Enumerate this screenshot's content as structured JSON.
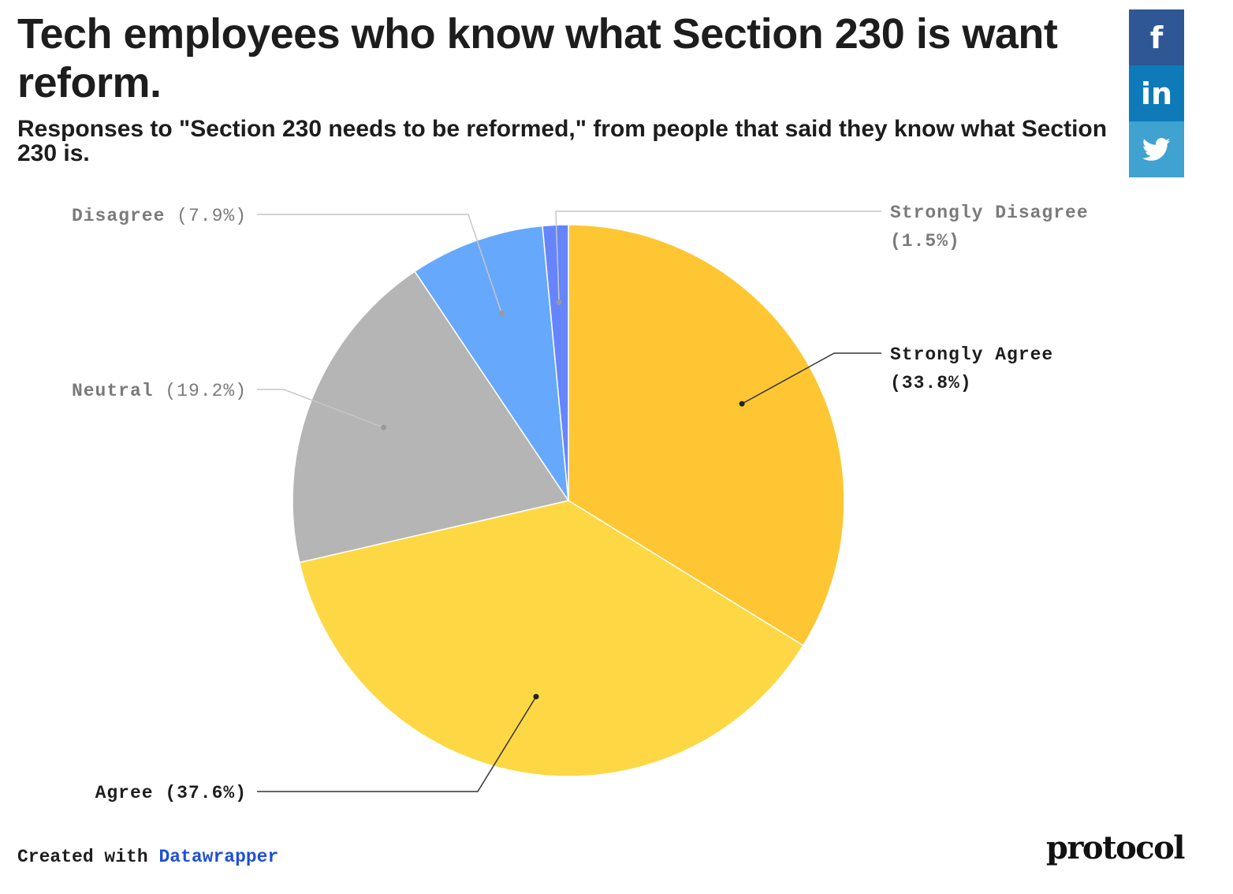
{
  "header": {
    "title": "Tech employees who know what Section 230 is want reform.",
    "subtitle": "Responses to \"Section 230 needs to be reformed,\" from people that said they know what Section 230 is."
  },
  "social": {
    "facebook": {
      "glyph": "f",
      "color": "#2f5796"
    },
    "linkedin": {
      "glyph": "in",
      "color": "#0f7ab8"
    },
    "twitter": {
      "glyph": "twitter-bird",
      "color": "#3fa2d0"
    }
  },
  "chart_data": {
    "type": "pie",
    "categories": [
      "Strongly Agree",
      "Agree",
      "Neutral",
      "Disagree",
      "Strongly Disagree"
    ],
    "values": [
      33.8,
      37.6,
      19.2,
      7.9,
      1.5
    ],
    "labels": [
      "Strongly Agree (33.8%)",
      "Agree (37.6%)",
      "Neutral (19.2%)",
      "Disagree (7.9%)",
      "Strongly Disagree (1.5%)"
    ],
    "colors": [
      "#fec633",
      "#fdd844",
      "#b5b5b5",
      "#66a8fb",
      "#6685fc"
    ],
    "start": "12 o'clock, clockwise"
  },
  "footer": {
    "created_with": "Created with",
    "tool": "Datawrapper",
    "brand": "protocol"
  }
}
